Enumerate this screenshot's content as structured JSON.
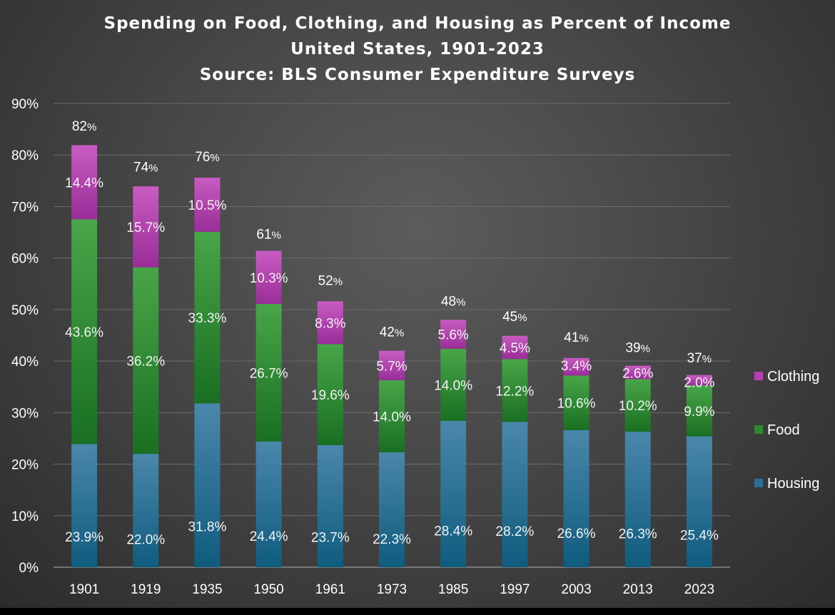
{
  "colors": {
    "clothing": "#b83fb2",
    "food": "#2f8a2f",
    "housing": "#2c6f96",
    "grid": "#6c6c6c",
    "text": "#ffffff"
  },
  "chart_data": {
    "type": "bar",
    "stacked": true,
    "title": [
      "Spending on Food, Clothing, and Housing as Percent of Income",
      "United States, 1901-2023",
      "Source: BLS Consumer Expenditure Surveys"
    ],
    "xlabel": "",
    "ylabel": "",
    "ylim": [
      0,
      90
    ],
    "yticks": [
      0,
      10,
      20,
      30,
      40,
      50,
      60,
      70,
      80,
      90
    ],
    "ytick_labels": [
      "0%",
      "10%",
      "20%",
      "30%",
      "40%",
      "50%",
      "60%",
      "70%",
      "80%",
      "90%"
    ],
    "grid": true,
    "legend_position": "right",
    "categories": [
      "1901",
      "1919",
      "1935",
      "1950",
      "1961",
      "1973",
      "1985",
      "1997",
      "2003",
      "2013",
      "2023"
    ],
    "series": [
      {
        "name": "Housing",
        "color_key": "housing",
        "values": [
          23.9,
          22.0,
          31.8,
          24.4,
          23.7,
          22.3,
          28.4,
          28.2,
          26.6,
          26.3,
          25.4
        ],
        "labels": [
          "23.9%",
          "22.0%",
          "31.8%",
          "24.4%",
          "23.7%",
          "22.3%",
          "28.4%",
          "28.2%",
          "26.6%",
          "26.3%",
          "25.4%"
        ]
      },
      {
        "name": "Food",
        "color_key": "food",
        "values": [
          43.6,
          36.2,
          33.3,
          26.7,
          19.6,
          14.0,
          14.0,
          12.2,
          10.6,
          10.2,
          9.9
        ],
        "labels": [
          "43.6%",
          "36.2%",
          "33.3%",
          "26.7%",
          "19.6%",
          "14.0%",
          "14.0%",
          "12.2%",
          "10.6%",
          "10.2%",
          "9.9%"
        ]
      },
      {
        "name": "Clothing",
        "color_key": "clothing",
        "values": [
          14.4,
          15.7,
          10.5,
          10.3,
          8.3,
          5.7,
          5.6,
          4.5,
          3.4,
          2.6,
          2.0
        ],
        "labels": [
          "14.4%",
          "15.7%",
          "10.5%",
          "10.3%",
          "8.3%",
          "5.7%",
          "5.6%",
          "4.5%",
          "3.4%",
          "2.6%",
          "2.0%"
        ]
      }
    ],
    "totals": [
      82,
      74,
      76,
      61,
      52,
      42,
      48,
      45,
      41,
      39,
      37
    ],
    "total_labels": [
      {
        "num": "82",
        "unit": "%"
      },
      {
        "num": "74",
        "unit": "%"
      },
      {
        "num": "76",
        "unit": "%"
      },
      {
        "num": "61",
        "unit": "%"
      },
      {
        "num": "52",
        "unit": "%"
      },
      {
        "num": "42",
        "unit": "%"
      },
      {
        "num": "48",
        "unit": "%"
      },
      {
        "num": "45",
        "unit": "%"
      },
      {
        "num": "41",
        "unit": "%"
      },
      {
        "num": "39",
        "unit": "%"
      },
      {
        "num": "37",
        "unit": "%"
      }
    ],
    "legend": [
      "Clothing",
      "Food",
      "Housing"
    ]
  }
}
